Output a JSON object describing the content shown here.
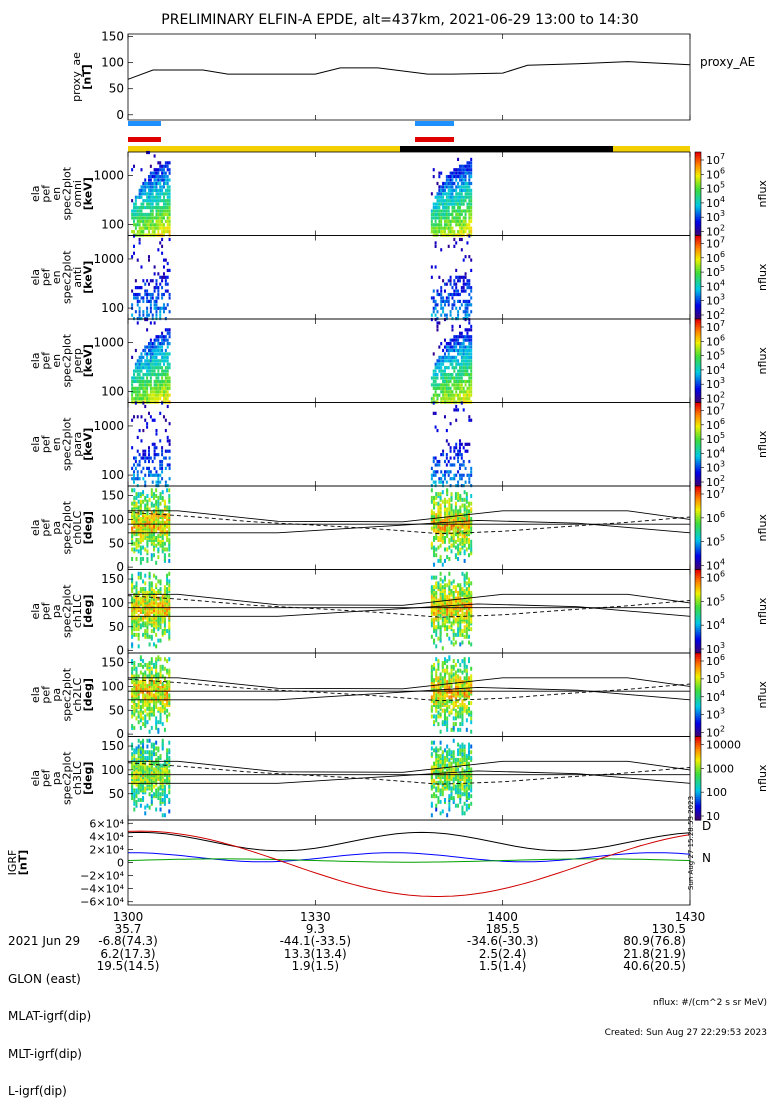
{
  "title": "PRELIMINARY ELFIN-A EPDE, alt=437km, 2021-06-29 13:00 to 14:30",
  "colors": {
    "orbit_yellow": "#f5d000",
    "orbit_black": "#000000",
    "blue_bar": "#1e90ff",
    "red_bar": "#e00000",
    "bx": "#000000",
    "by": "#0000ff",
    "bz": "#00a000",
    "btot": "#d00000"
  },
  "chart_data": [
    {
      "type": "line",
      "panel": "proxy_ae",
      "ylabel": [
        "proxy_ae",
        "[nT]"
      ],
      "legend": "proxy_AE",
      "ylim": [
        -10,
        155
      ],
      "yticks": [
        "150",
        "100",
        "50",
        "0"
      ],
      "x": [
        0,
        4,
        12,
        16,
        24,
        30,
        34,
        40,
        48,
        52,
        60,
        64,
        72,
        80,
        90
      ],
      "values": [
        68,
        86,
        86,
        78,
        78,
        78,
        90,
        90,
        78,
        78,
        80,
        95,
        98,
        102,
        96
      ]
    },
    {
      "type": "heatmap",
      "panel": "omni",
      "ylabel": [
        "ela",
        "pef",
        "en",
        "spec2plot",
        "omni",
        "[keV]"
      ],
      "yticks": [
        "1000",
        "100"
      ],
      "zlabel": "nflux",
      "zticks": [
        "10^7",
        "10^6",
        "10^5",
        "10^4",
        "10^3",
        "10^2"
      ],
      "ymax_bursts": [
        2200,
        2000
      ]
    },
    {
      "type": "heatmap",
      "panel": "anti",
      "ylabel": [
        "ela",
        "pef",
        "en",
        "spec2plot",
        "anti",
        "[keV]"
      ],
      "yticks": [
        "1000",
        "100"
      ],
      "zlabel": "nflux",
      "zticks": [
        "10^7",
        "10^6",
        "10^5",
        "10^4",
        "10^3",
        "10^2"
      ]
    },
    {
      "type": "heatmap",
      "panel": "perp",
      "ylabel": [
        "ela",
        "pef",
        "en",
        "spec2plot",
        "perp",
        "[keV]"
      ],
      "yticks": [
        "1000",
        "100"
      ],
      "zlabel": "nflux",
      "zticks": [
        "10^7",
        "10^6",
        "10^5",
        "10^4",
        "10^3",
        "10^2"
      ]
    },
    {
      "type": "heatmap",
      "panel": "para",
      "ylabel": [
        "ela",
        "pef",
        "en",
        "spec2plot",
        "para",
        "[keV]"
      ],
      "yticks": [
        "1000",
        "100"
      ],
      "zlabel": "nflux",
      "zticks": [
        "10^7",
        "10^6",
        "10^5",
        "10^4",
        "10^3",
        "10^2"
      ]
    },
    {
      "type": "heatmap",
      "panel": "ch0LC",
      "ylabel": [
        "ela",
        "pef",
        "pa",
        "spec2plot",
        "ch0LC",
        "[deg]"
      ],
      "yticks": [
        "150",
        "100",
        "50",
        "0"
      ],
      "zlabel": "nflux",
      "zticks": [
        "10^7",
        "10^6",
        "10^5",
        "10^4"
      ]
    },
    {
      "type": "heatmap",
      "panel": "ch1LC",
      "ylabel": [
        "ela",
        "pef",
        "pa",
        "spec2plot",
        "ch1LC",
        "[deg]"
      ],
      "yticks": [
        "150",
        "100",
        "50",
        "0"
      ],
      "zlabel": "nflux",
      "zticks": [
        "10^6",
        "10^5",
        "10^4",
        "10^3"
      ]
    },
    {
      "type": "heatmap",
      "panel": "ch2LC",
      "ylabel": [
        "ela",
        "pef",
        "pa",
        "spec2plot",
        "ch2LC",
        "[deg]"
      ],
      "yticks": [
        "150",
        "100",
        "50",
        "0"
      ],
      "zlabel": "nflux",
      "zticks": [
        "10^6",
        "10^5",
        "10^4",
        "10^3",
        "10^2"
      ]
    },
    {
      "type": "heatmap",
      "panel": "ch3LC",
      "ylabel": [
        "ela",
        "pef",
        "pa",
        "spec2plot",
        "ch3LC",
        "[deg]"
      ],
      "yticks": [
        "150",
        "100",
        "50"
      ],
      "zlabel": "nflux",
      "zticks": [
        "10000",
        "1000",
        "100",
        "10"
      ]
    },
    {
      "type": "line",
      "panel": "IGRF",
      "ylabel": [
        "IGRF",
        "[nT]"
      ],
      "yticks": [
        "6×10⁴",
        "4×10⁴",
        "2×10⁴",
        "0",
        "−2×10⁴",
        "−4×10⁴",
        "−6×10⁴"
      ],
      "ylim": [
        -65000,
        65000
      ],
      "legend": [
        "D",
        "N"
      ]
    }
  ],
  "time_axis": {
    "ticks": [
      "1300",
      "1330",
      "1400",
      "1430"
    ],
    "x_minutes": [
      0,
      30,
      60,
      90
    ]
  },
  "ephem_table": {
    "labels": [
      "2021 Jun 29",
      "GLON (east)",
      "MLAT-igrf(dip)",
      "MLT-igrf(dip)",
      "L-igrf(dip)"
    ],
    "cols": [
      [
        "",
        "35.7",
        "-6.8(74.3)",
        "6.2(17.3)",
        "19.5(14.5)"
      ],
      [
        "",
        "9.3",
        "-44.1(-33.5)",
        "13.3(13.4)",
        "1.9(1.5)"
      ],
      [
        "",
        "185.5",
        "-34.6(-30.3)",
        "2.5(2.4)",
        "1.5(1.4)"
      ],
      [
        "",
        "130.5",
        "80.9(76.8)",
        "21.8(21.9)",
        "40.6(20.5)"
      ]
    ]
  },
  "side_stamp": "Sun Aug 27 15:28:53 2023",
  "footer": {
    "units": "nflux: #/(cm^2 s sr MeV)",
    "created": "Created: Sun Aug 27 22:29:53 2023"
  }
}
